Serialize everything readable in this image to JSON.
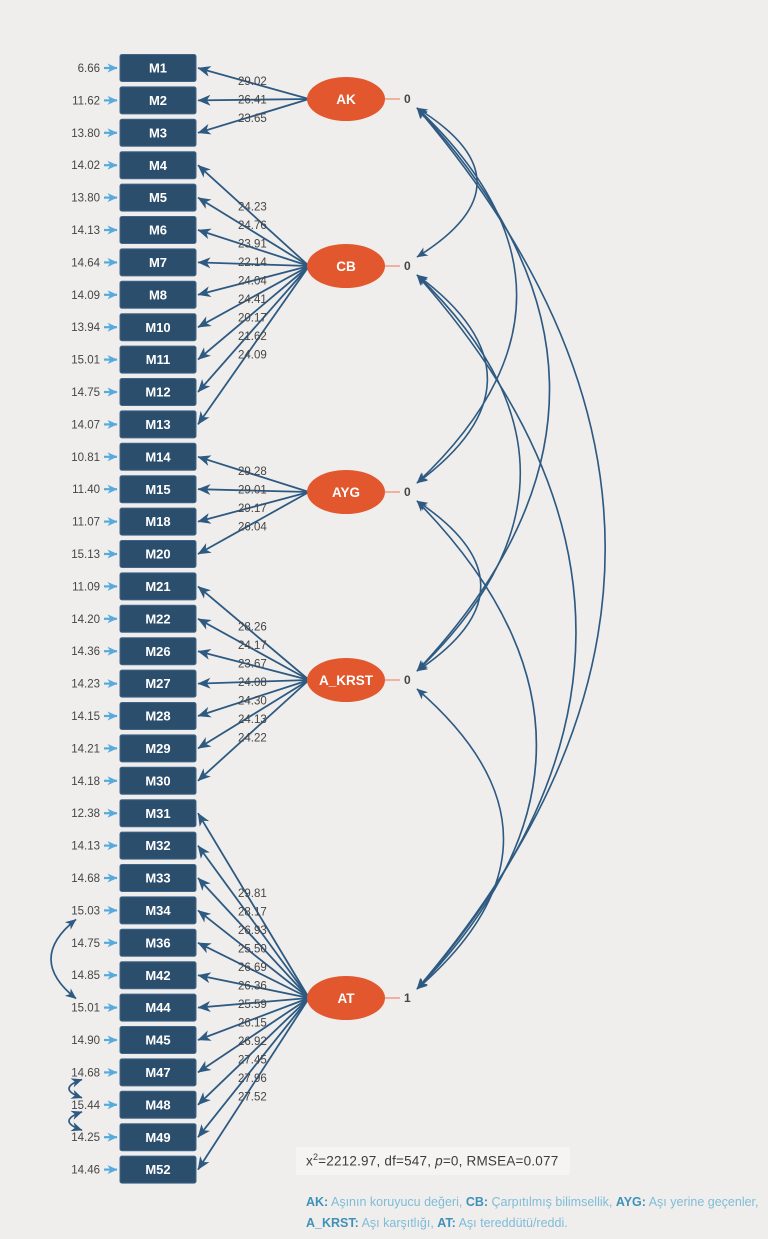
{
  "colors": {
    "background": "#efeeec",
    "box_fill": "#2b4e6d",
    "box_stroke": "#40658a",
    "box_text": "#ffffff",
    "ellipse_fill": "#e2572e",
    "ellipse_text": "#ffffff",
    "path_blue": "#2e5a82",
    "error_arrow_blue": "#56aadc",
    "variance_line_salmon": "#f0a38c",
    "value_text": "#454545",
    "fit_text": "#3c3c3c",
    "legend_term": "#3e92ba",
    "legend_desc": "#7fbcd9"
  },
  "model": {
    "factors": [
      {
        "name": "AK",
        "variance": "0",
        "indicators": [
          {
            "label": "M1",
            "error": "6.66",
            "loading": "29.02"
          },
          {
            "label": "M2",
            "error": "11.62",
            "loading": "26.41"
          },
          {
            "label": "M3",
            "error": "13.80",
            "loading": "23.65"
          }
        ]
      },
      {
        "name": "CB",
        "variance": "0",
        "indicators": [
          {
            "label": "M4",
            "error": "14.02",
            "loading": "24.23"
          },
          {
            "label": "M5",
            "error": "13.80",
            "loading": "24.76"
          },
          {
            "label": "M6",
            "error": "14.13",
            "loading": "23.91"
          },
          {
            "label": "M7",
            "error": "14.64",
            "loading": "22.14"
          },
          {
            "label": "M8",
            "error": "14.09",
            "loading": "24.04"
          },
          {
            "label": "M10",
            "error": "13.94",
            "loading": "24.41"
          },
          {
            "label": "M11",
            "error": "15.01",
            "loading": "20.17"
          },
          {
            "label": "M12",
            "error": "14.75",
            "loading": "21.62"
          },
          {
            "label": "M13",
            "error": "14.07",
            "loading": "24.09"
          }
        ]
      },
      {
        "name": "AYG",
        "variance": "0",
        "indicators": [
          {
            "label": "M14",
            "error": "10.81",
            "loading": "29.28"
          },
          {
            "label": "M15",
            "error": "11.40",
            "loading": "29.01"
          },
          {
            "label": "M18",
            "error": "11.07",
            "loading": "29.17"
          },
          {
            "label": "M20",
            "error": "15.13",
            "loading": "26.04"
          }
        ]
      },
      {
        "name": "A_KRST",
        "variance": "0",
        "indicators": [
          {
            "label": "M21",
            "error": "11.09",
            "loading": "28.26"
          },
          {
            "label": "M22",
            "error": "14.20",
            "loading": "24.17"
          },
          {
            "label": "M26",
            "error": "14.36",
            "loading": "23.67"
          },
          {
            "label": "M27",
            "error": "14.23",
            "loading": "24.08"
          },
          {
            "label": "M28",
            "error": "14.15",
            "loading": "24.30"
          },
          {
            "label": "M29",
            "error": "14.21",
            "loading": "24.13"
          },
          {
            "label": "M30",
            "error": "14.18",
            "loading": "24.22"
          }
        ]
      },
      {
        "name": "AT",
        "variance": "1",
        "indicators": [
          {
            "label": "M31",
            "error": "12.38",
            "loading": "29.81"
          },
          {
            "label": "M32",
            "error": "14.13",
            "loading": "28.17"
          },
          {
            "label": "M33",
            "error": "14.68",
            "loading": "26.93"
          },
          {
            "label": "M34",
            "error": "15.03",
            "loading": "25.50"
          },
          {
            "label": "M36",
            "error": "14.75",
            "loading": "26.69"
          },
          {
            "label": "M42",
            "error": "14.85",
            "loading": "26.36"
          },
          {
            "label": "M44",
            "error": "15.01",
            "loading": "25.59"
          },
          {
            "label": "M45",
            "error": "14.90",
            "loading": "26.15"
          },
          {
            "label": "M47",
            "error": "14.68",
            "loading": "26.92"
          },
          {
            "label": "M48",
            "error": "15.44",
            "loading": "27.45"
          },
          {
            "label": "M49",
            "error": "14.25",
            "loading": "27.96"
          },
          {
            "label": "M52",
            "error": "14.46",
            "loading": "27.52"
          }
        ]
      }
    ],
    "factor_covariances": [
      [
        "AK",
        "CB"
      ],
      [
        "AK",
        "AYG"
      ],
      [
        "AK",
        "A_KRST"
      ],
      [
        "AK",
        "AT"
      ],
      [
        "CB",
        "AYG"
      ],
      [
        "CB",
        "A_KRST"
      ],
      [
        "CB",
        "AT"
      ],
      [
        "AYG",
        "A_KRST"
      ],
      [
        "AYG",
        "AT"
      ],
      [
        "A_KRST",
        "AT"
      ]
    ],
    "error_covariances": [
      [
        "M34",
        "M44"
      ],
      [
        "M47",
        "M48"
      ],
      [
        "M48",
        "M49"
      ]
    ]
  },
  "fit": {
    "chi_base": "x",
    "chi_sup": "2",
    "chi_rest": "=2212.97,  df=547, ",
    "p_label": "p",
    "p_rest": "=0, RMSEA=0.077"
  },
  "legend": {
    "lines": [
      [
        {
          "term": "AK:",
          "desc": " Aşının koruyucu değeri, "
        },
        {
          "term": "CB:",
          "desc": " Çarpıtılmış bilimsellik, "
        },
        {
          "term": "AYG:",
          "desc": " Aşı yerine geçenler,"
        }
      ],
      [
        {
          "term": "A_KRST:",
          "desc": " Aşı karşıtlığı, "
        },
        {
          "term": "AT:",
          "desc": " Aşı tereddütü/reddi."
        }
      ]
    ]
  }
}
